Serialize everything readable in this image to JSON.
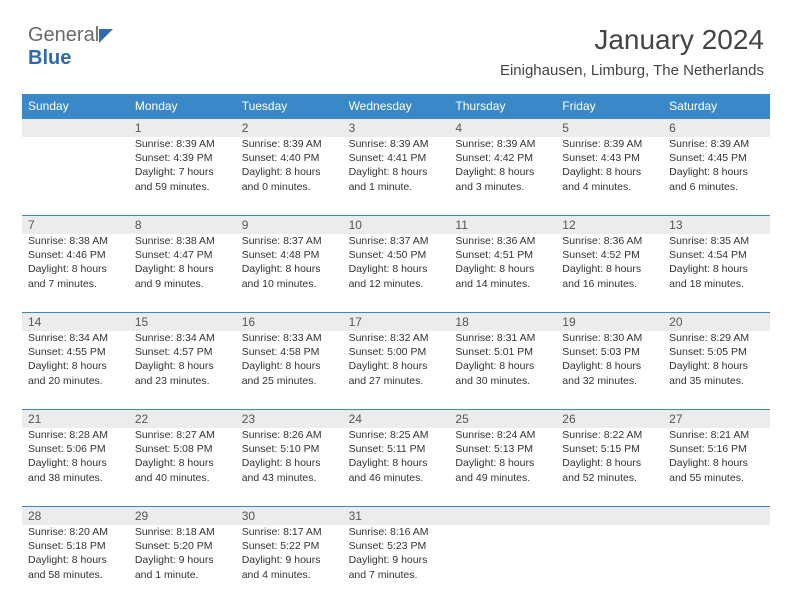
{
  "logo": {
    "part1": "General",
    "part2": "Blue"
  },
  "title": "January 2024",
  "subtitle": "Einighausen, Limburg, The Netherlands",
  "header_bg": "#3b88c9",
  "daynum_bg": "#ececec",
  "day_headers": [
    "Sunday",
    "Monday",
    "Tuesday",
    "Wednesday",
    "Thursday",
    "Friday",
    "Saturday"
  ],
  "weeks": [
    {
      "nums": [
        "",
        "1",
        "2",
        "3",
        "4",
        "5",
        "6"
      ],
      "cells": [
        {
          "sunrise": "",
          "sunset": "",
          "daylight": ""
        },
        {
          "sunrise": "Sunrise: 8:39 AM",
          "sunset": "Sunset: 4:39 PM",
          "daylight": "Daylight: 7 hours and 59 minutes."
        },
        {
          "sunrise": "Sunrise: 8:39 AM",
          "sunset": "Sunset: 4:40 PM",
          "daylight": "Daylight: 8 hours and 0 minutes."
        },
        {
          "sunrise": "Sunrise: 8:39 AM",
          "sunset": "Sunset: 4:41 PM",
          "daylight": "Daylight: 8 hours and 1 minute."
        },
        {
          "sunrise": "Sunrise: 8:39 AM",
          "sunset": "Sunset: 4:42 PM",
          "daylight": "Daylight: 8 hours and 3 minutes."
        },
        {
          "sunrise": "Sunrise: 8:39 AM",
          "sunset": "Sunset: 4:43 PM",
          "daylight": "Daylight: 8 hours and 4 minutes."
        },
        {
          "sunrise": "Sunrise: 8:39 AM",
          "sunset": "Sunset: 4:45 PM",
          "daylight": "Daylight: 8 hours and 6 minutes."
        }
      ]
    },
    {
      "nums": [
        "7",
        "8",
        "9",
        "10",
        "11",
        "12",
        "13"
      ],
      "cells": [
        {
          "sunrise": "Sunrise: 8:38 AM",
          "sunset": "Sunset: 4:46 PM",
          "daylight": "Daylight: 8 hours and 7 minutes."
        },
        {
          "sunrise": "Sunrise: 8:38 AM",
          "sunset": "Sunset: 4:47 PM",
          "daylight": "Daylight: 8 hours and 9 minutes."
        },
        {
          "sunrise": "Sunrise: 8:37 AM",
          "sunset": "Sunset: 4:48 PM",
          "daylight": "Daylight: 8 hours and 10 minutes."
        },
        {
          "sunrise": "Sunrise: 8:37 AM",
          "sunset": "Sunset: 4:50 PM",
          "daylight": "Daylight: 8 hours and 12 minutes."
        },
        {
          "sunrise": "Sunrise: 8:36 AM",
          "sunset": "Sunset: 4:51 PM",
          "daylight": "Daylight: 8 hours and 14 minutes."
        },
        {
          "sunrise": "Sunrise: 8:36 AM",
          "sunset": "Sunset: 4:52 PM",
          "daylight": "Daylight: 8 hours and 16 minutes."
        },
        {
          "sunrise": "Sunrise: 8:35 AM",
          "sunset": "Sunset: 4:54 PM",
          "daylight": "Daylight: 8 hours and 18 minutes."
        }
      ]
    },
    {
      "nums": [
        "14",
        "15",
        "16",
        "17",
        "18",
        "19",
        "20"
      ],
      "cells": [
        {
          "sunrise": "Sunrise: 8:34 AM",
          "sunset": "Sunset: 4:55 PM",
          "daylight": "Daylight: 8 hours and 20 minutes."
        },
        {
          "sunrise": "Sunrise: 8:34 AM",
          "sunset": "Sunset: 4:57 PM",
          "daylight": "Daylight: 8 hours and 23 minutes."
        },
        {
          "sunrise": "Sunrise: 8:33 AM",
          "sunset": "Sunset: 4:58 PM",
          "daylight": "Daylight: 8 hours and 25 minutes."
        },
        {
          "sunrise": "Sunrise: 8:32 AM",
          "sunset": "Sunset: 5:00 PM",
          "daylight": "Daylight: 8 hours and 27 minutes."
        },
        {
          "sunrise": "Sunrise: 8:31 AM",
          "sunset": "Sunset: 5:01 PM",
          "daylight": "Daylight: 8 hours and 30 minutes."
        },
        {
          "sunrise": "Sunrise: 8:30 AM",
          "sunset": "Sunset: 5:03 PM",
          "daylight": "Daylight: 8 hours and 32 minutes."
        },
        {
          "sunrise": "Sunrise: 8:29 AM",
          "sunset": "Sunset: 5:05 PM",
          "daylight": "Daylight: 8 hours and 35 minutes."
        }
      ]
    },
    {
      "nums": [
        "21",
        "22",
        "23",
        "24",
        "25",
        "26",
        "27"
      ],
      "cells": [
        {
          "sunrise": "Sunrise: 8:28 AM",
          "sunset": "Sunset: 5:06 PM",
          "daylight": "Daylight: 8 hours and 38 minutes."
        },
        {
          "sunrise": "Sunrise: 8:27 AM",
          "sunset": "Sunset: 5:08 PM",
          "daylight": "Daylight: 8 hours and 40 minutes."
        },
        {
          "sunrise": "Sunrise: 8:26 AM",
          "sunset": "Sunset: 5:10 PM",
          "daylight": "Daylight: 8 hours and 43 minutes."
        },
        {
          "sunrise": "Sunrise: 8:25 AM",
          "sunset": "Sunset: 5:11 PM",
          "daylight": "Daylight: 8 hours and 46 minutes."
        },
        {
          "sunrise": "Sunrise: 8:24 AM",
          "sunset": "Sunset: 5:13 PM",
          "daylight": "Daylight: 8 hours and 49 minutes."
        },
        {
          "sunrise": "Sunrise: 8:22 AM",
          "sunset": "Sunset: 5:15 PM",
          "daylight": "Daylight: 8 hours and 52 minutes."
        },
        {
          "sunrise": "Sunrise: 8:21 AM",
          "sunset": "Sunset: 5:16 PM",
          "daylight": "Daylight: 8 hours and 55 minutes."
        }
      ]
    },
    {
      "nums": [
        "28",
        "29",
        "30",
        "31",
        "",
        "",
        ""
      ],
      "cells": [
        {
          "sunrise": "Sunrise: 8:20 AM",
          "sunset": "Sunset: 5:18 PM",
          "daylight": "Daylight: 8 hours and 58 minutes."
        },
        {
          "sunrise": "Sunrise: 8:18 AM",
          "sunset": "Sunset: 5:20 PM",
          "daylight": "Daylight: 9 hours and 1 minute."
        },
        {
          "sunrise": "Sunrise: 8:17 AM",
          "sunset": "Sunset: 5:22 PM",
          "daylight": "Daylight: 9 hours and 4 minutes."
        },
        {
          "sunrise": "Sunrise: 8:16 AM",
          "sunset": "Sunset: 5:23 PM",
          "daylight": "Daylight: 9 hours and 7 minutes."
        },
        {
          "sunrise": "",
          "sunset": "",
          "daylight": ""
        },
        {
          "sunrise": "",
          "sunset": "",
          "daylight": ""
        },
        {
          "sunrise": "",
          "sunset": "",
          "daylight": ""
        }
      ]
    }
  ]
}
